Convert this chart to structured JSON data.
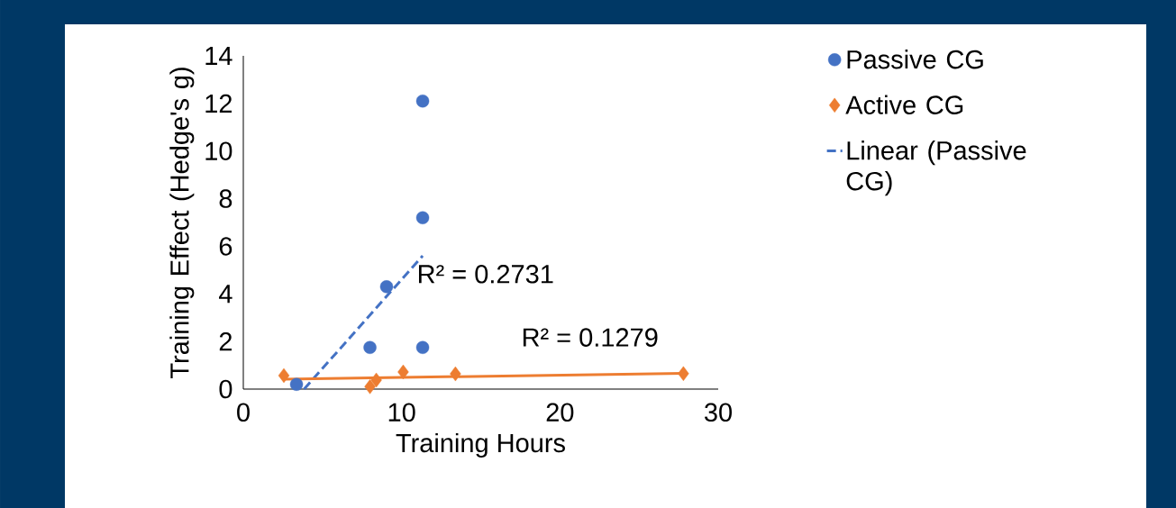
{
  "chart_data": {
    "type": "scatter",
    "xlabel": "Training Hours",
    "ylabel": "Training Effect (Hedge's g)",
    "xlim": [
      0,
      30
    ],
    "xticks": [
      0,
      10,
      20,
      30
    ],
    "ylim": [
      0,
      14
    ],
    "yticks": [
      0,
      2,
      4,
      6,
      8,
      10,
      12,
      14
    ],
    "grid": false,
    "legend": "top right",
    "series": [
      {
        "name": "Passive CG",
        "color": "#4472c4",
        "marker": "circle",
        "x": [
          3.36,
          8.0,
          9.05,
          11.33,
          11.33,
          11.33
        ],
        "values": [
          0.2,
          1.75,
          4.3,
          1.75,
          7.2,
          12.1
        ]
      },
      {
        "name": "Active CG",
        "color": "#ed7d31",
        "marker": "diamond",
        "x": [
          2.56,
          8.0,
          8.4,
          10.1,
          13.4,
          27.8
        ],
        "values": [
          0.57,
          0.1,
          0.38,
          0.72,
          0.64,
          0.65
        ]
      },
      {
        "name": "Linear (Passive CG)",
        "type": "line",
        "color": "#4472c4",
        "line_style": "dashed",
        "marker": "none",
        "x": [
          3.84,
          11.33
        ],
        "values": [
          0,
          5.6
        ]
      },
      {
        "type": "line",
        "color": "#ed7d31",
        "line_style": "solid",
        "marker": "none",
        "x": [
          2.56,
          27.8
        ],
        "values": [
          0.42,
          0.66
        ]
      }
    ],
    "annotations": [
      "R² = 0.2731",
      "R² = 0.1279"
    ]
  }
}
